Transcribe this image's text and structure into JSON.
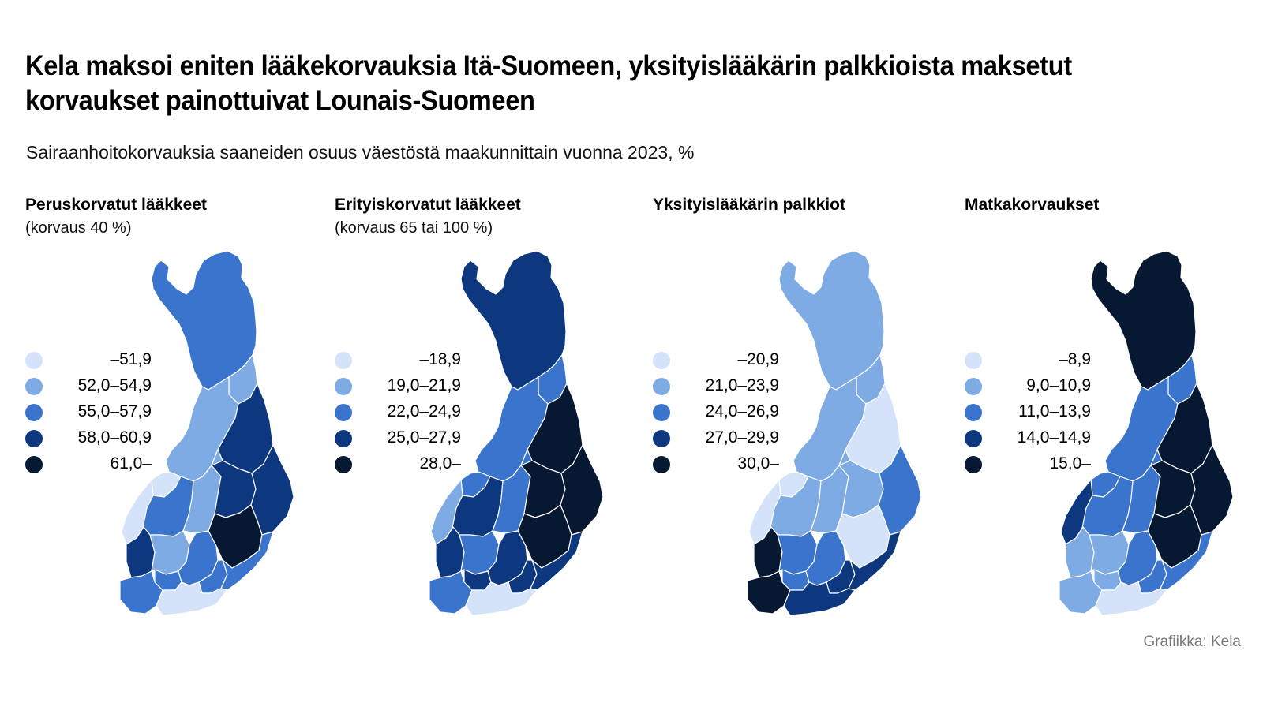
{
  "title": "Kela maksoi eniten lääkekorvauksia Itä-Suomeen, yksityislääkärin palkkioista maksetut korvaukset painottuivat Lounais-Suomeen",
  "subtitle": "Sairaanhoitokorvauksia saaneiden osuus väestöstä maakunnittain vuonna 2023, %",
  "source": "Grafiikka: Kela",
  "colors": [
    "#d5e3fa",
    "#7fabe5",
    "#3a74cc",
    "#0d3880",
    "#071833"
  ],
  "panels": [
    {
      "title": "Peruskorvatut lääkkeet",
      "subtitle": "(korvaus 40 %)",
      "legend": [
        "–51,9",
        "52,0–54,9",
        "55,0–57,9",
        "58,0–60,9",
        "61,0–"
      ],
      "region_class": {
        "lappi": 2,
        "koillismaa": 1,
        "pohjois_pohjanmaa": 1,
        "kainuu": 3,
        "keski_pohjanmaa": 0,
        "pohjanmaa": 0,
        "etela_pohjanmaa": 2,
        "keski_suomi": 1,
        "pohjois_savo": 3,
        "pohjois_karjala": 3,
        "satakunta": 3,
        "pirkanmaa": 1,
        "etela_savo": 4,
        "kanta_hame": 2,
        "paijat_hame": 2,
        "kymenlaakso": 2,
        "etela_karjala": 2,
        "varsinais_suomi": 2,
        "uusimaa": 0
      }
    },
    {
      "title": "Erityiskorvatut lääkkeet",
      "subtitle": "(korvaus 65 tai 100 %)",
      "legend": [
        "–18,9",
        "19,0–21,9",
        "22,0–24,9",
        "25,0–27,9",
        "28,0–"
      ],
      "region_class": {
        "lappi": 3,
        "koillismaa": 2,
        "pohjois_pohjanmaa": 2,
        "kainuu": 4,
        "keski_pohjanmaa": 2,
        "pohjanmaa": 1,
        "etela_pohjanmaa": 3,
        "keski_suomi": 2,
        "pohjois_savo": 4,
        "pohjois_karjala": 4,
        "satakunta": 3,
        "pirkanmaa": 2,
        "etela_savo": 4,
        "kanta_hame": 3,
        "paijat_hame": 3,
        "kymenlaakso": 3,
        "etela_karjala": 3,
        "varsinais_suomi": 2,
        "uusimaa": 0
      }
    },
    {
      "title": "Yksityislääkärin palkkiot",
      "subtitle": "",
      "legend": [
        "–20,9",
        "21,0–23,9",
        "24,0–26,9",
        "27,0–29,9",
        "30,0–"
      ],
      "region_class": {
        "lappi": 1,
        "koillismaa": 1,
        "pohjois_pohjanmaa": 1,
        "kainuu": 0,
        "keski_pohjanmaa": 0,
        "pohjanmaa": 0,
        "etela_pohjanmaa": 1,
        "keski_suomi": 1,
        "pohjois_savo": 1,
        "pohjois_karjala": 2,
        "satakunta": 4,
        "pirkanmaa": 2,
        "etela_savo": 0,
        "kanta_hame": 2,
        "paijat_hame": 2,
        "kymenlaakso": 3,
        "etela_karjala": 3,
        "varsinais_suomi": 4,
        "uusimaa": 3
      }
    },
    {
      "title": "Matkakorvaukset",
      "subtitle": "",
      "legend": [
        "–8,9",
        "9,0–10,9",
        "11,0–13,9",
        "14,0–14,9",
        "15,0–"
      ],
      "region_class": {
        "lappi": 4,
        "koillismaa": 2,
        "pohjois_pohjanmaa": 2,
        "kainuu": 4,
        "keski_pohjanmaa": 2,
        "pohjanmaa": 3,
        "etela_pohjanmaa": 2,
        "keski_suomi": 2,
        "pohjois_savo": 4,
        "pohjois_karjala": 4,
        "satakunta": 1,
        "pirkanmaa": 1,
        "etela_savo": 4,
        "kanta_hame": 1,
        "paijat_hame": 2,
        "kymenlaakso": 2,
        "etela_karjala": 2,
        "varsinais_suomi": 1,
        "uusimaa": 0
      }
    }
  ]
}
